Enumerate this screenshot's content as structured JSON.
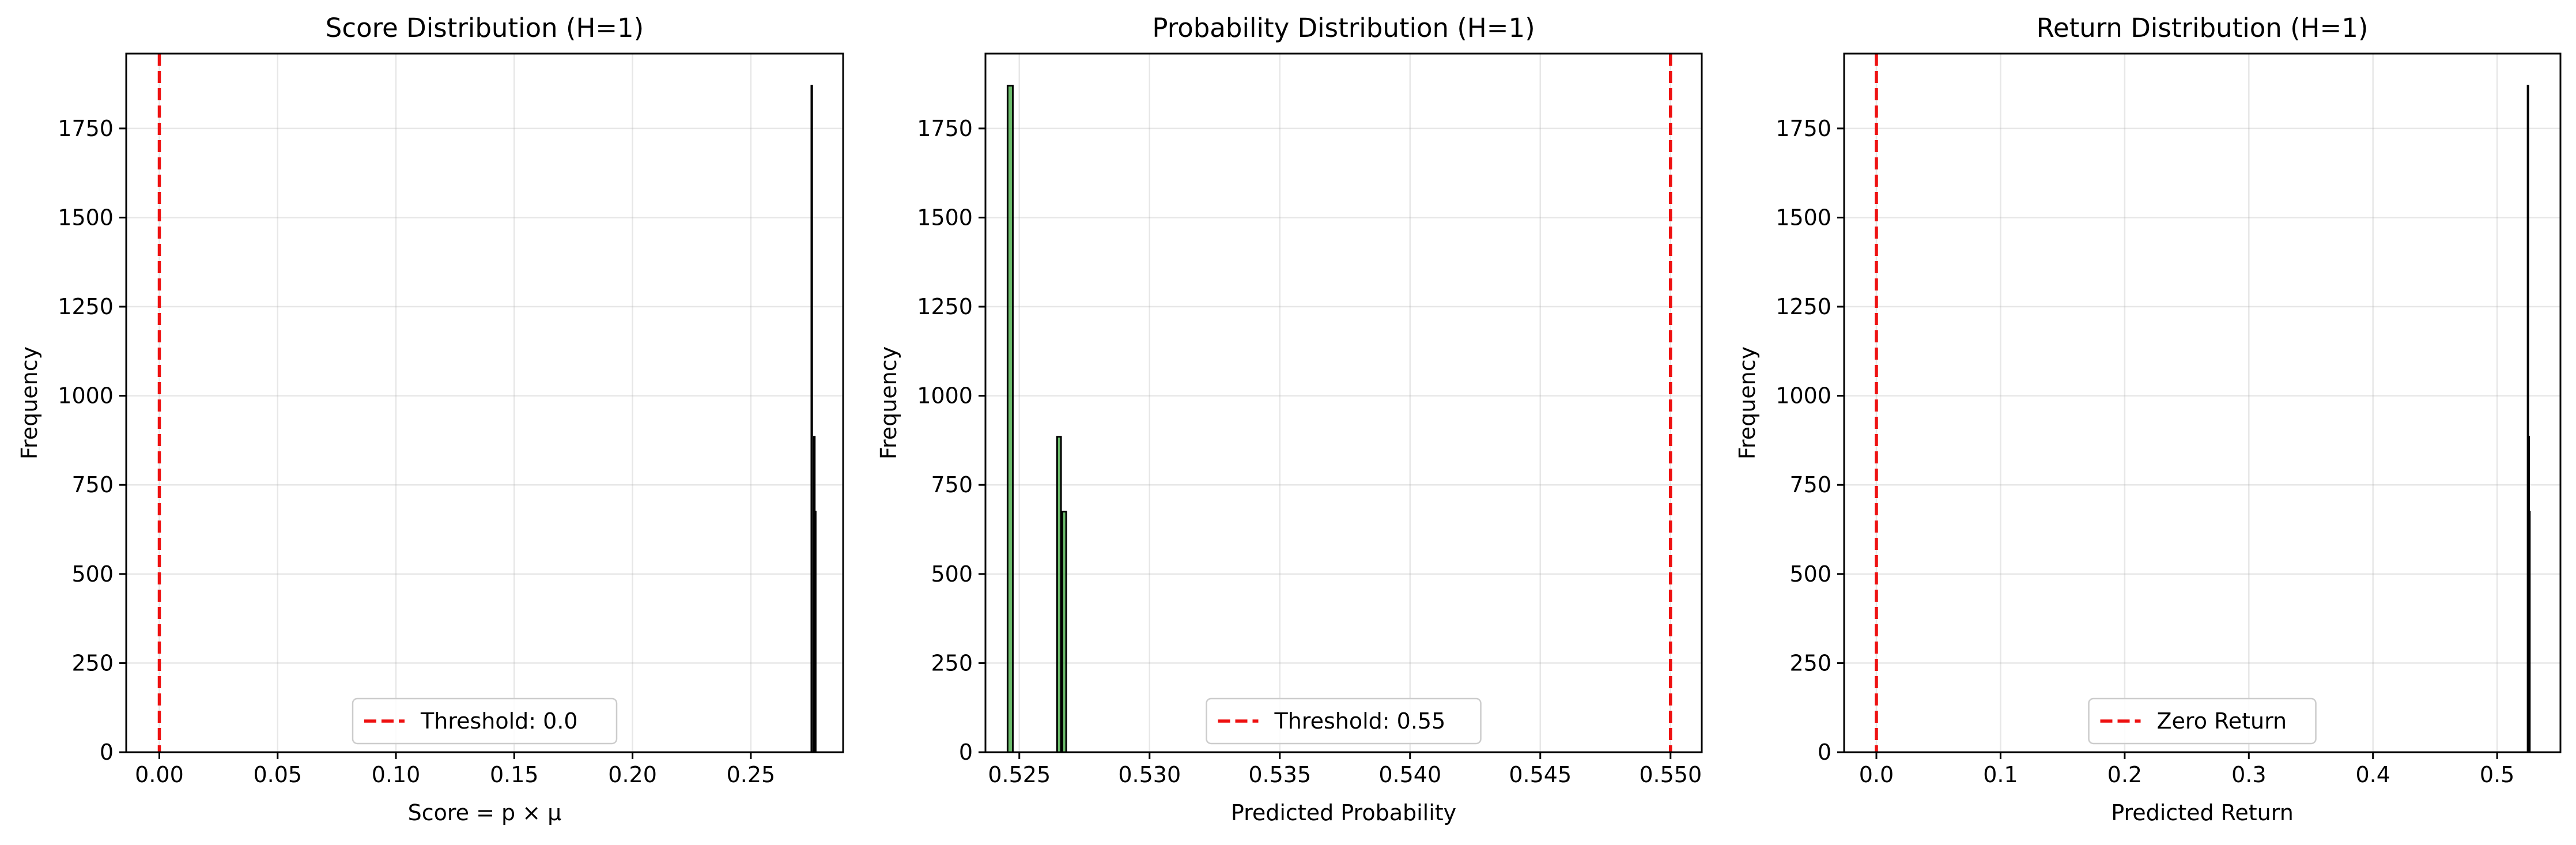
{
  "chart_data": [
    {
      "type": "histogram",
      "title": "Score Distribution (H=1)",
      "xlabel": "Score = p × μ",
      "ylabel": "Frequency",
      "xlim": [
        -0.014,
        0.289
      ],
      "ylim": [
        0,
        1960
      ],
      "xticks": [
        0.0,
        0.05,
        0.1,
        0.15,
        0.2,
        0.25
      ],
      "xtick_labels": [
        "0.00",
        "0.05",
        "0.10",
        "0.15",
        "0.20",
        "0.25"
      ],
      "yticks": [
        0,
        250,
        500,
        750,
        1000,
        1250,
        1500,
        1750
      ],
      "ytick_labels": [
        "0",
        "250",
        "500",
        "750",
        "1000",
        "1250",
        "1500",
        "1750"
      ],
      "grid": true,
      "bar_color": "#2ca02c",
      "bins": [
        {
          "x0": 0.2756,
          "x1": 0.2759,
          "count": 1870
        },
        {
          "x0": 0.2767,
          "x1": 0.277,
          "count": 885
        },
        {
          "x0": 0.2771,
          "x1": 0.2774,
          "count": 675
        }
      ],
      "reference_line": {
        "x": 0.0,
        "color": "#ee1111",
        "style": "dashed",
        "label": "Threshold: 0.0"
      },
      "legend": {
        "position": "lower center",
        "entries": [
          "Threshold: 0.0"
        ]
      }
    },
    {
      "type": "histogram",
      "title": "Probability Distribution (H=1)",
      "xlabel": "Predicted Probability",
      "ylabel": "Frequency",
      "xlim": [
        0.5237,
        0.5512
      ],
      "ylim": [
        0,
        1960
      ],
      "xticks": [
        0.525,
        0.53,
        0.535,
        0.54,
        0.545,
        0.55
      ],
      "xtick_labels": [
        "0.525",
        "0.530",
        "0.535",
        "0.540",
        "0.545",
        "0.550"
      ],
      "yticks": [
        0,
        250,
        500,
        750,
        1000,
        1250,
        1500,
        1750
      ],
      "ytick_labels": [
        "0",
        "250",
        "500",
        "750",
        "1000",
        "1250",
        "1500",
        "1750"
      ],
      "grid": true,
      "bar_color": "#2ca02c",
      "bins": [
        {
          "x0": 0.52455,
          "x1": 0.52475,
          "count": 1870
        },
        {
          "x0": 0.52645,
          "x1": 0.5266,
          "count": 885
        },
        {
          "x0": 0.52665,
          "x1": 0.5268,
          "count": 675
        }
      ],
      "reference_line": {
        "x": 0.55,
        "color": "#ee1111",
        "style": "dashed",
        "label": "Threshold: 0.55"
      },
      "legend": {
        "position": "lower center",
        "entries": [
          "Threshold: 0.55"
        ]
      }
    },
    {
      "type": "histogram",
      "title": "Return Distribution (H=1)",
      "xlabel": "Predicted Return",
      "ylabel": "Frequency",
      "xlim": [
        -0.026,
        0.551
      ],
      "ylim": [
        0,
        1960
      ],
      "xticks": [
        0.0,
        0.1,
        0.2,
        0.3,
        0.4,
        0.5
      ],
      "xtick_labels": [
        "0.0",
        "0.1",
        "0.2",
        "0.3",
        "0.4",
        "0.5"
      ],
      "yticks": [
        0,
        250,
        500,
        750,
        1000,
        1250,
        1500,
        1750
      ],
      "ytick_labels": [
        "0",
        "250",
        "500",
        "750",
        "1000",
        "1250",
        "1500",
        "1750"
      ],
      "grid": true,
      "bar_color": "#2ca02c",
      "bins": [
        {
          "x0": 0.5246,
          "x1": 0.5251,
          "count": 1870
        },
        {
          "x0": 0.5252,
          "x1": 0.5257,
          "count": 885
        },
        {
          "x0": 0.5258,
          "x1": 0.5263,
          "count": 675
        }
      ],
      "reference_line": {
        "x": 0.0,
        "color": "#ee1111",
        "style": "dashed",
        "label": "Zero Return"
      },
      "legend": {
        "position": "lower center",
        "entries": [
          "Zero Return"
        ]
      }
    }
  ]
}
